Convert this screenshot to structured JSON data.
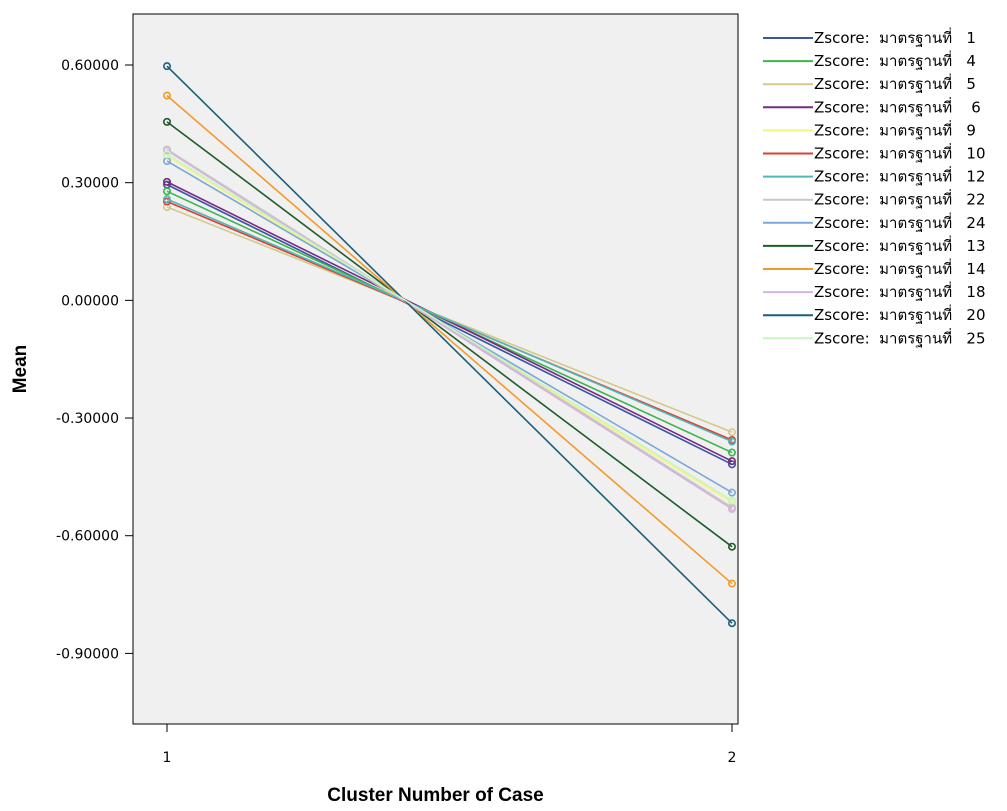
{
  "chart_data": {
    "type": "line",
    "title": "",
    "xlabel": "Cluster Number of Case",
    "ylabel": "Mean",
    "categories": [
      "1",
      "2"
    ],
    "ylim": [
      -1.08,
      0.73
    ],
    "yticks": [
      "0.60000",
      "0.30000",
      "0.00000",
      "-0.30000",
      "-0.60000",
      "-0.90000"
    ],
    "ytick_values": [
      0.6,
      0.3,
      0.0,
      -0.3,
      -0.6,
      -0.9
    ],
    "grid": false,
    "legend_position": "right",
    "plot_background": "#f0f0f0",
    "series": [
      {
        "name": "Zscore:  มาตรฐานที่   1",
        "color": "#3a55a4",
        "values": [
          0.295,
          -0.418
        ]
      },
      {
        "name": "Zscore:  มาตรฐานที่   4",
        "color": "#3ab54a",
        "values": [
          0.278,
          -0.388
        ]
      },
      {
        "name": "Zscore:  มาตรฐานที่   5",
        "color": "#d4c98b",
        "values": [
          0.238,
          -0.336
        ]
      },
      {
        "name": "Zscore:  มาตรฐานที่    6",
        "color": "#762a83",
        "values": [
          0.302,
          -0.41
        ]
      },
      {
        "name": "Zscore:  มาตรฐานที่   9",
        "color": "#f5f57a",
        "values": [
          0.368,
          -0.515
        ]
      },
      {
        "name": "Zscore:  มาตรฐานที่   10",
        "color": "#e03c31",
        "values": [
          0.252,
          -0.356
        ]
      },
      {
        "name": "Zscore:  มาตรฐานที่   12",
        "color": "#4fb8b8",
        "values": [
          0.258,
          -0.36
        ]
      },
      {
        "name": "Zscore:  มาตรฐานที่   22",
        "color": "#c8c8c8",
        "values": [
          0.385,
          -0.528
        ]
      },
      {
        "name": "Zscore:  มาตรฐานที่   24",
        "color": "#7ba7d9",
        "values": [
          0.355,
          -0.49
        ]
      },
      {
        "name": "Zscore:  มาตรฐานที่   13",
        "color": "#1e5b2a",
        "values": [
          0.455,
          -0.628
        ]
      },
      {
        "name": "Zscore:  มาตรฐานที่   14",
        "color": "#f39a2a",
        "values": [
          0.522,
          -0.722
        ]
      },
      {
        "name": "Zscore:  มาตรฐานที่   18",
        "color": "#d4b3e0",
        "values": [
          0.382,
          -0.532
        ]
      },
      {
        "name": "Zscore:  มาตรฐานที่   20",
        "color": "#1c5e7a",
        "values": [
          0.597,
          -0.823
        ]
      },
      {
        "name": "Zscore:  มาตรฐานที่   25",
        "color": "#c8f5c0",
        "values": [
          0.372,
          -0.51
        ]
      }
    ]
  }
}
